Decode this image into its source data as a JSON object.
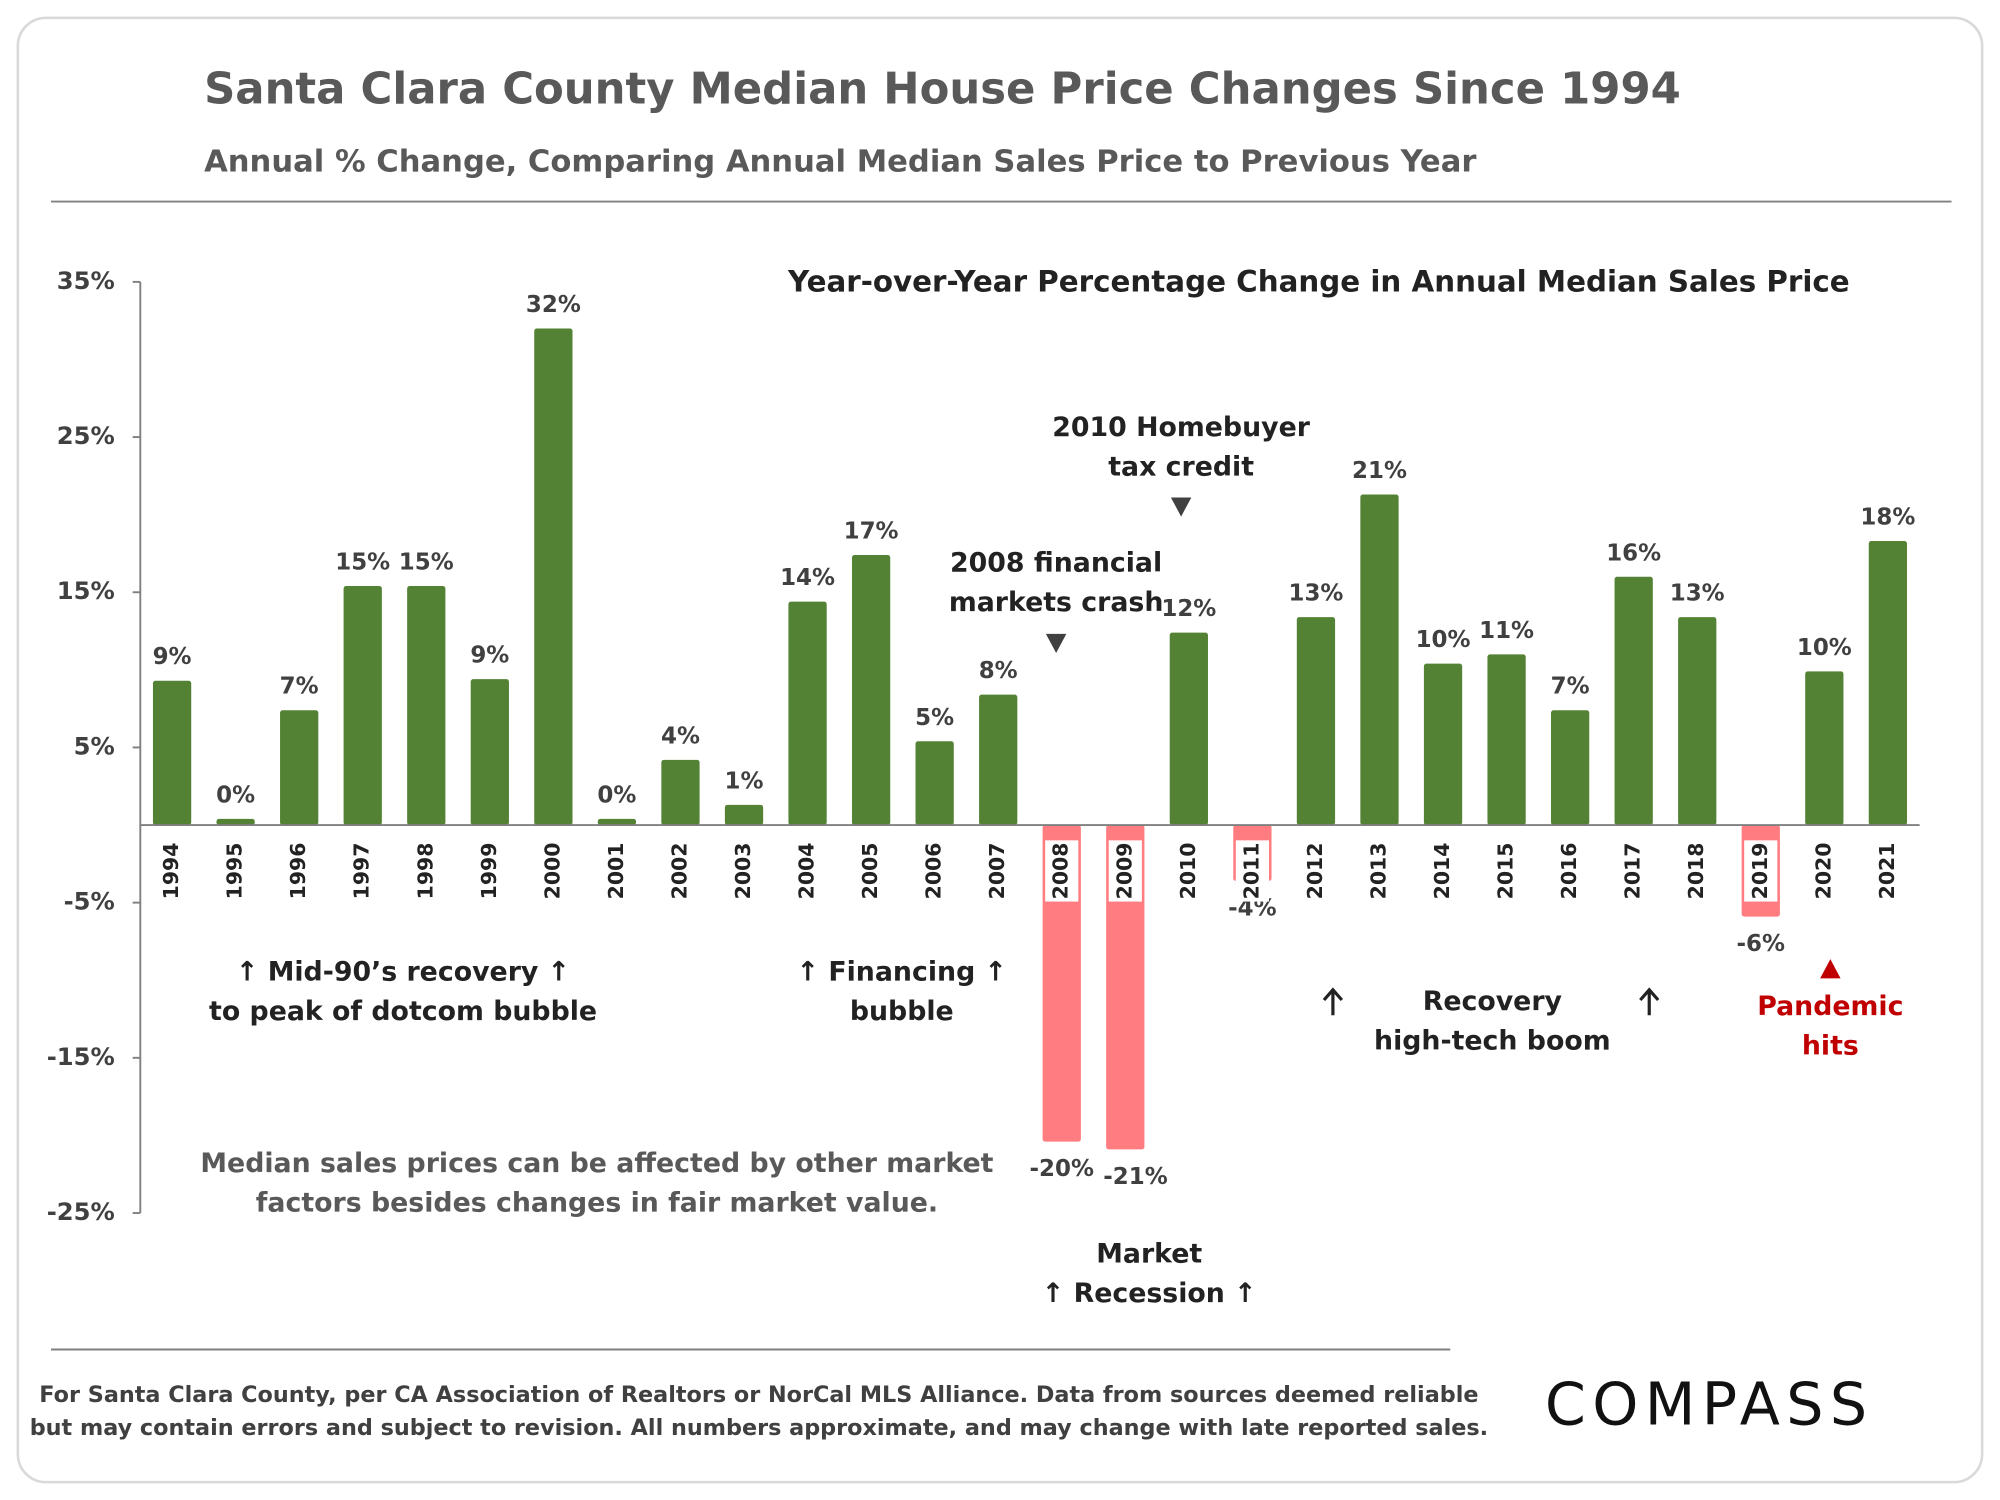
{
  "chart_data": {
    "type": "bar",
    "title": "Santa Clara County Median House Price Changes Since 1994",
    "subtitle": "Annual % Change, Comparing Annual Median Sales Price to Previous Year",
    "chart_title": "Year-over-Year Percentage Change in Annual Median Sales Price",
    "categories": [
      "1994",
      "1995",
      "1996",
      "1997",
      "1998",
      "1999",
      "2000",
      "2001",
      "2002",
      "2003",
      "2004",
      "2005",
      "2006",
      "2007",
      "2008",
      "2009",
      "2010",
      "2011",
      "2012",
      "2013",
      "2014",
      "2015",
      "2016",
      "2017",
      "2018",
      "2019",
      "2020",
      "2021"
    ],
    "values": [
      9.3,
      0.4,
      7.4,
      15.4,
      15.4,
      9.4,
      32,
      0.4,
      4.2,
      1.3,
      14.4,
      17.4,
      5.4,
      8.4,
      -20.4,
      -20.9,
      12.4,
      -3.6,
      13.4,
      21.3,
      10.4,
      11.0,
      7.4,
      16.0,
      13.4,
      -5.9,
      9.9,
      18.3
    ],
    "value_labels": [
      "9%",
      "0%",
      "7%",
      "15%",
      "15%",
      "9%",
      "32%",
      "0%",
      "4%",
      "1%",
      "14%",
      "17%",
      "5%",
      "8%",
      "-20%",
      "-21%",
      "12%",
      "-4%",
      "13%",
      "21%",
      "10%",
      "11%",
      "7%",
      "16%",
      "13%",
      "-6%",
      "10%",
      "18%"
    ],
    "positive_color": "#548235",
    "negative_color": "#ff7c80",
    "ylim": [
      -25,
      35
    ],
    "yticks": [
      {
        "value": 35,
        "label": "35%"
      },
      {
        "value": 25,
        "label": "25%"
      },
      {
        "value": 15,
        "label": "15%"
      },
      {
        "value": 5,
        "label": "5%"
      },
      {
        "value": -5,
        "label": "-5%"
      },
      {
        "value": -15,
        "label": "-15%"
      },
      {
        "value": -25,
        "label": "-25%"
      }
    ],
    "annotations": [
      {
        "lines": [
          "↑ Mid-90’s recovery ↑",
          "to peak of dotcom bubble"
        ]
      },
      {
        "lines": [
          "↑ Financing ↑",
          "bubble"
        ]
      },
      {
        "lines": [
          "2008 financial",
          "markets crash"
        ]
      },
      {
        "lines": [
          "2010 Homebuyer",
          "tax credit"
        ]
      },
      {
        "lines": [
          "Market",
          "↑ Recession ↑"
        ]
      },
      {
        "lines": [
          "Recovery",
          "high-tech boom"
        ]
      },
      {
        "lines": [
          "Pandemic",
          "hits"
        ]
      },
      {
        "lines": [
          "Median sales prices can be affected by other market",
          "factors besides changes in fair market value."
        ]
      }
    ],
    "footer": [
      "For Santa Clara County, per CA Association of Realtors or NorCal MLS Alliance. Data from sources deemed reliable",
      "but may contain errors and subject to revision. All numbers approximate, and may change with late reported sales."
    ],
    "logo": "COMPASS"
  }
}
